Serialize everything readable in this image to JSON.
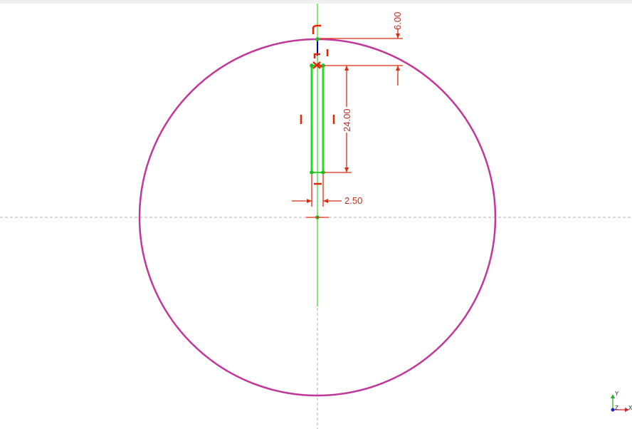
{
  "colors": {
    "circle": "#c0399a",
    "construction": "#66dd55",
    "profile": "#22dd22",
    "point": "#22bb22",
    "dimension": "#e02a10",
    "dimension_text": "#c03020",
    "constraint": "#ee2200",
    "axis_dash": "#b0b0b0",
    "blue_line": "#0000cc",
    "triad_y": "#22aa22",
    "triad_x": "#cc2222",
    "triad_z": "#2222cc"
  },
  "dimensions": {
    "top_offset": "6.00",
    "slot_length": "24.00",
    "slot_width": "2.50"
  },
  "triad": {
    "y_label": "Y",
    "z_label": "Z",
    "x_label": "X"
  }
}
